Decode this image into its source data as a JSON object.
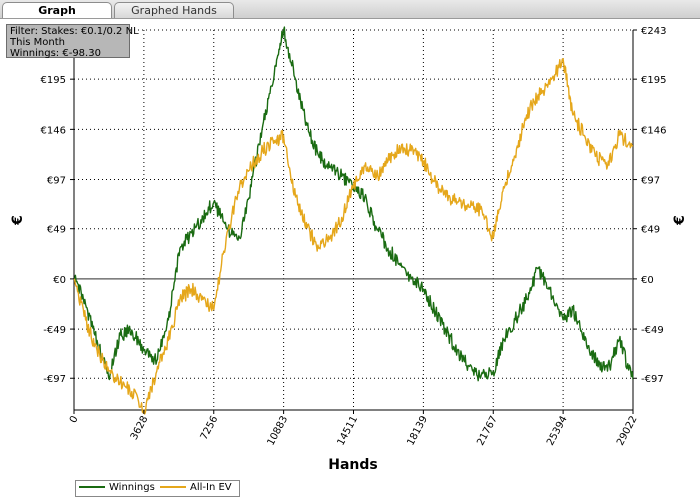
{
  "tabs": [
    {
      "label": "Graph",
      "active": true
    },
    {
      "label": "Graphed Hands",
      "active": false
    }
  ],
  "filter_box": {
    "line1": "Filter: Stakes: €0.1/0.2 NL",
    "line2": "This Month",
    "line3": "Winnings: €-98.30"
  },
  "chart_data": {
    "type": "line",
    "xlabel": "Hands",
    "ylabel": "€",
    "xlim": [
      0,
      29022
    ],
    "ylim": [
      -128,
      243
    ],
    "x_ticks": [
      0,
      3628,
      7256,
      10883,
      14511,
      18139,
      21767,
      25394,
      29022
    ],
    "y_ticks": [
      {
        "value": -97,
        "label": "-€97"
      },
      {
        "value": -49,
        "label": "-€49"
      },
      {
        "value": 0,
        "label": "€0"
      },
      {
        "value": 49,
        "label": "€49"
      },
      {
        "value": 97,
        "label": "€97"
      },
      {
        "value": 146,
        "label": "€146"
      },
      {
        "value": 195,
        "label": "€195"
      },
      {
        "value": 243,
        "label": "€243"
      }
    ],
    "grid": true,
    "legend_position": "bottom-left",
    "series": [
      {
        "name": "Winnings",
        "color": "#1a6b12",
        "x": [
          0,
          600,
          1200,
          1800,
          2400,
          3000,
          3628,
          4300,
          4900,
          5500,
          6100,
          6700,
          7256,
          7900,
          8600,
          9200,
          9800,
          10400,
          10883,
          11500,
          12100,
          12700,
          13300,
          13900,
          14511,
          15100,
          15700,
          16300,
          16900,
          17500,
          18139,
          18700,
          19300,
          19900,
          20500,
          21100,
          21767,
          22300,
          22900,
          23500,
          24100,
          24700,
          25394,
          25900,
          26500,
          27100,
          27700,
          28300,
          29022
        ],
        "y": [
          0,
          -25,
          -60,
          -97,
          -55,
          -50,
          -70,
          -80,
          -40,
          30,
          45,
          60,
          75,
          50,
          40,
          90,
          150,
          200,
          243,
          195,
          150,
          120,
          110,
          100,
          90,
          80,
          50,
          30,
          15,
          0,
          -10,
          -30,
          -50,
          -70,
          -85,
          -97,
          -90,
          -60,
          -40,
          -20,
          10,
          -10,
          -40,
          -30,
          -60,
          -80,
          -90,
          -60,
          -98.3
        ]
      },
      {
        "name": "All-In EV",
        "color": "#e5a71b",
        "x": [
          0,
          600,
          1200,
          1800,
          2400,
          3000,
          3628,
          4300,
          4900,
          5500,
          6100,
          6700,
          7256,
          7900,
          8600,
          9200,
          9800,
          10400,
          10883,
          11500,
          12100,
          12700,
          13300,
          13900,
          14511,
          15100,
          15700,
          16300,
          16900,
          17500,
          18139,
          18700,
          19300,
          19900,
          20500,
          21100,
          21767,
          22300,
          22900,
          23500,
          24100,
          24700,
          25394,
          25900,
          26500,
          27100,
          27700,
          28300,
          29022
        ],
        "y": [
          0,
          -40,
          -70,
          -90,
          -100,
          -110,
          -128,
          -90,
          -60,
          -20,
          -10,
          -20,
          -30,
          40,
          90,
          110,
          125,
          135,
          140,
          80,
          50,
          30,
          40,
          60,
          90,
          110,
          100,
          115,
          130,
          125,
          115,
          95,
          80,
          75,
          70,
          68,
          40,
          90,
          120,
          160,
          180,
          190,
          215,
          160,
          140,
          120,
          110,
          140,
          130
        ]
      }
    ]
  }
}
